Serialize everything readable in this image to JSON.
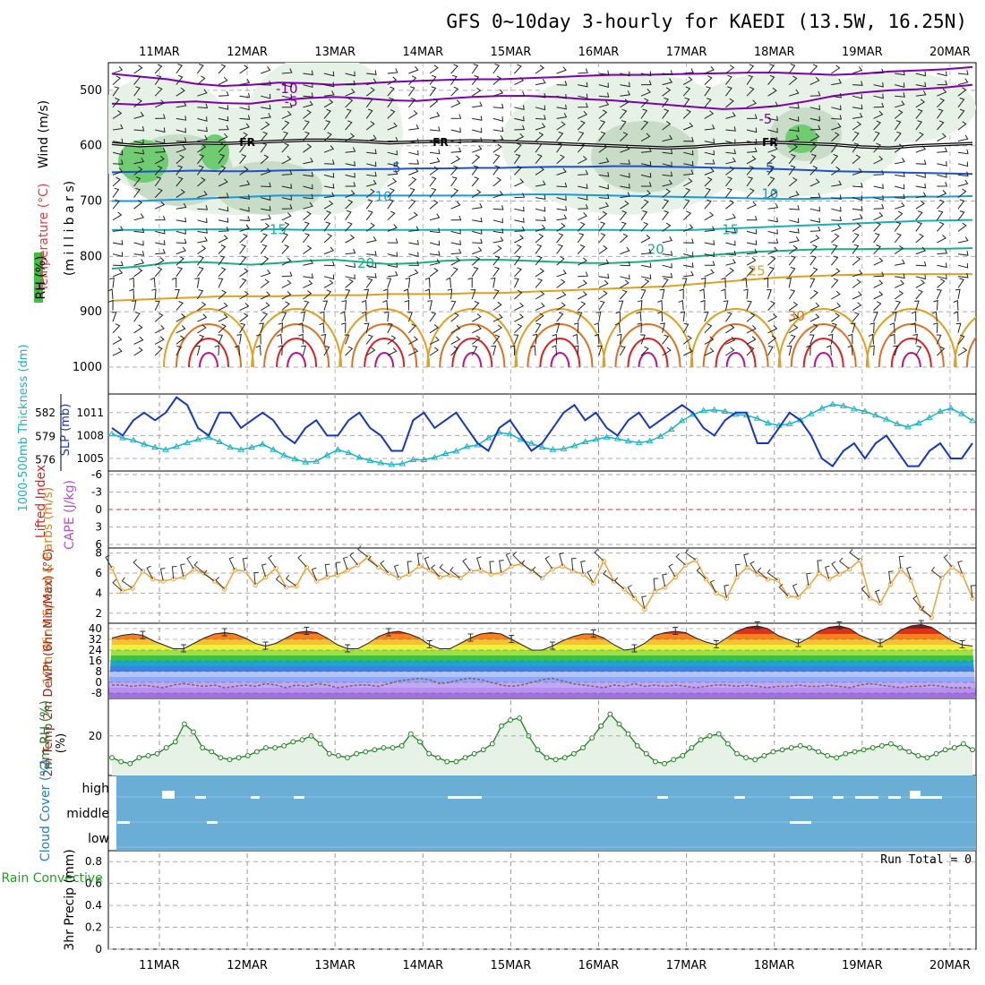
{
  "title": "GFS 0~10day 3-hourly for KAEDI (13.5W, 16.25N)",
  "dates": [
    "11MAR",
    "12MAR",
    "13MAR",
    "14MAR",
    "15MAR",
    "16MAR",
    "17MAR",
    "18MAR",
    "19MAR",
    "20MAR"
  ],
  "colors": {
    "purple": "#7f00b0",
    "black": "#000000",
    "blue1": "#1e4fd0",
    "blue2": "#1a99e0",
    "teal": "#18b0b0",
    "green": "#18b080",
    "orange": "#e0a020",
    "dkorange": "#e07020",
    "red": "#e02020",
    "magenta": "#c0108a",
    "slp": "#1436c8",
    "thick": "#18b4c4",
    "wind10": "#f0a030",
    "rh": "#208020",
    "cloud": "#6aaed6"
  },
  "chart_data": [
    {
      "name": "upper-air",
      "type": "contour",
      "ylabel_wind": "Wind (m/s)",
      "ylabel_temp": "Temperature (°C)",
      "ylabel_rh": "RH (%)",
      "ylabel_p": "(m i l l i b a r s)",
      "yticks": [
        500,
        600,
        700,
        800,
        900,
        1000
      ],
      "ylim": [
        450,
        1000
      ],
      "isotherm_labels": [
        {
          "text": "-10",
          "t": 1.45,
          "p": 497
        },
        {
          "text": "-5",
          "t": 1.5,
          "p": 520
        },
        {
          "text": "-5",
          "t": 6.9,
          "p": 552
        },
        {
          "text": "FR",
          "t": 1.0,
          "p": 592
        },
        {
          "text": "FR",
          "t": 3.2,
          "p": 592
        },
        {
          "text": "FR",
          "t": 6.95,
          "p": 592
        },
        {
          "text": "5",
          "t": 2.7,
          "p": 640
        },
        {
          "text": "5",
          "t": 6.95,
          "p": 640
        },
        {
          "text": "10",
          "t": 2.55,
          "p": 692
        },
        {
          "text": "10",
          "t": 6.95,
          "p": 687
        },
        {
          "text": "15",
          "t": 1.35,
          "p": 752
        },
        {
          "text": "15",
          "t": 6.5,
          "p": 752
        },
        {
          "text": "20",
          "t": 2.35,
          "p": 812
        },
        {
          "text": "20",
          "t": 5.65,
          "p": 787
        },
        {
          "text": "25",
          "t": 6.8,
          "p": 826
        },
        {
          "text": "30",
          "t": 7.25,
          "p": 908
        }
      ],
      "isotherms": [
        {
          "label": "-10",
          "color": "#7f00b0",
          "p": [
            470,
            475,
            480,
            488,
            492,
            490,
            486,
            487,
            490,
            488,
            485,
            483,
            481,
            480,
            480,
            478,
            476,
            474,
            472,
            472,
            471,
            470,
            469,
            468,
            468,
            470,
            472,
            470,
            466,
            464,
            462,
            458
          ]
        },
        {
          "label": "-5",
          "color": "#7f00b0",
          "p": [
            524,
            526,
            522,
            520,
            523,
            524,
            518,
            514,
            512,
            514,
            518,
            519,
            515,
            512,
            510,
            510,
            512,
            516,
            518,
            522,
            526,
            530,
            534,
            532,
            528,
            520,
            510,
            504,
            500,
            498,
            495,
            490
          ]
        },
        {
          "label": "FR",
          "color": "#000000",
          "p": [
            596,
            600,
            598,
            595,
            596,
            594,
            592,
            590,
            590,
            592,
            595,
            593,
            592,
            591,
            592,
            594,
            596,
            598,
            600,
            602,
            604,
            602,
            598,
            596,
            594,
            596,
            598,
            602,
            604,
            600,
            598,
            596
          ]
        },
        {
          "label": "5",
          "color": "#1e4fd0",
          "p": [
            648,
            647,
            646,
            645,
            646,
            646,
            645,
            644,
            643,
            642,
            642,
            641,
            641,
            640,
            640,
            639,
            638,
            638,
            637,
            637,
            638,
            639,
            640,
            641,
            642,
            644,
            646,
            647,
            648,
            649,
            650,
            651
          ]
        },
        {
          "label": "10",
          "color": "#1a99e0",
          "p": [
            700,
            700,
            698,
            696,
            694,
            692,
            690,
            690,
            690,
            690,
            690,
            690,
            690,
            690,
            689,
            688,
            688,
            689,
            690,
            691,
            692,
            693,
            694,
            695,
            696,
            696,
            695,
            694,
            693,
            692,
            692,
            691
          ]
        },
        {
          "label": "15",
          "color": "#18b0b0",
          "p": [
            752,
            752,
            752,
            751,
            751,
            751,
            751,
            752,
            752,
            752,
            752,
            752,
            752,
            752,
            752,
            752,
            752,
            752,
            752,
            753,
            753,
            752,
            750,
            748,
            746,
            744,
            742,
            740,
            738,
            736,
            735,
            734
          ]
        },
        {
          "label": "20",
          "color": "#18b080",
          "p": [
            822,
            818,
            812,
            810,
            812,
            815,
            812,
            808,
            806,
            810,
            814,
            812,
            808,
            806,
            806,
            808,
            810,
            812,
            812,
            810,
            806,
            800,
            796,
            792,
            790,
            788,
            787,
            787,
            786,
            786,
            786,
            785
          ]
        },
        {
          "label": "25",
          "color": "#e0a020",
          "p": [
            880,
            878,
            876,
            874,
            872,
            872,
            872,
            870,
            870,
            870,
            868,
            868,
            868,
            866,
            866,
            864,
            862,
            860,
            858,
            856,
            854,
            850,
            846,
            842,
            838,
            836,
            834,
            833,
            832,
            832,
            832,
            832
          ]
        }
      ],
      "rh_shading_note": "RH (%)"
    },
    {
      "name": "slp-thickness",
      "type": "line",
      "ylabel_thick": "1000-500mb Thickness (dm)",
      "ylabel_slp": "SLP (mb)",
      "thickness_ticks": [
        576,
        579,
        582
      ],
      "slp_ticks": [
        1005,
        1008,
        1011
      ],
      "thick_lim": [
        574.8,
        584.2
      ],
      "slp_lim": [
        1003.6,
        1013.2
      ],
      "series": [
        {
          "name": "SLP",
          "values": [
            1009,
            1008,
            1010,
            1011,
            1010,
            1011,
            1013,
            1012,
            1009,
            1008,
            1011,
            1011,
            1009,
            1010,
            1011,
            1010,
            1008,
            1007,
            1009,
            1010,
            1008,
            1008,
            1010,
            1011,
            1009,
            1008,
            1006,
            1006,
            1010,
            1011,
            1009,
            1010,
            1011,
            1009,
            1007,
            1006,
            1009,
            1010,
            1008,
            1006,
            1007,
            1009,
            1011,
            1012,
            1010,
            1011,
            1009,
            1008,
            1010,
            1011,
            1009,
            1010,
            1011,
            1012,
            1011,
            1009,
            1008,
            1010,
            1011,
            1011,
            1007,
            1007,
            1009,
            1011,
            1010,
            1008,
            1005,
            1004,
            1006,
            1007,
            1005,
            1007,
            1008,
            1006,
            1004,
            1004,
            1006,
            1007,
            1005,
            1005,
            1007
          ]
        },
        {
          "name": "Thickness",
          "values": [
            579.3,
            578.8,
            578.5,
            578.0,
            577.6,
            577.3,
            577.7,
            578.2,
            578.6,
            578.9,
            578.3,
            577.6,
            577.3,
            577.6,
            578.0,
            577.3,
            576.6,
            576.1,
            575.7,
            575.8,
            576.6,
            577.3,
            576.9,
            576.3,
            575.9,
            575.6,
            575.4,
            575.5,
            576.0,
            576.0,
            576.3,
            576.8,
            577.1,
            577.7,
            577.9,
            578.8,
            579.5,
            579.3,
            578.6,
            578.1,
            577.6,
            577.3,
            577.4,
            577.8,
            578.3,
            578.6,
            578.9,
            578.7,
            578.4,
            578.2,
            578.4,
            579.0,
            579.9,
            581.0,
            581.8,
            582.3,
            582.4,
            582.2,
            581.8,
            581.7,
            581.3,
            580.7,
            580.4,
            580.6,
            581.1,
            581.9,
            582.6,
            583.1,
            582.9,
            582.5,
            582.2,
            581.7,
            581.2,
            580.6,
            580.2,
            580.7,
            581.4,
            582.2,
            582.6,
            581.9,
            581.0
          ]
        }
      ]
    },
    {
      "name": "li-cape",
      "type": "line",
      "ylabel_li": "Lifted Index",
      "ylabel_cape": "CAPE (J/kg)",
      "yticks": [
        "-6",
        "-3",
        "0",
        "3",
        "6"
      ],
      "ylim": [
        -6,
        6
      ]
    },
    {
      "name": "wind10m",
      "type": "line",
      "ylabel": "10m Wind Speed & Barbs (m/s)",
      "yticks": [
        2,
        4,
        6,
        8
      ],
      "ylim": [
        1,
        8.5
      ],
      "series": [
        {
          "name": "10m Wind Speed",
          "values": [
            6.5,
            4.2,
            4.5,
            6.2,
            5.4,
            5.2,
            5.4,
            5.6,
            6.4,
            6.0,
            5.2,
            4.4,
            6.3,
            6.2,
            4.8,
            5.6,
            6.5,
            4.6,
            4.7,
            6.6,
            5.2,
            5.6,
            5.8,
            6.3,
            6.8,
            7.6,
            6.6,
            6.0,
            5.5,
            5.9,
            6.7,
            6.3,
            5.6,
            5.8,
            5.5,
            6.2,
            6.3,
            5.9,
            6.0,
            6.7,
            6.9,
            6.2,
            5.5,
            6.4,
            6.7,
            6.2,
            5.9,
            5.0,
            7.2,
            5.2,
            4.4,
            3.5,
            2.4,
            4.2,
            4.6,
            5.6,
            6.8,
            7.3,
            5.4,
            4.0,
            3.5,
            5.6,
            6.6,
            5.9,
            5.4,
            5.3,
            3.7,
            3.6,
            4.7,
            6.0,
            5.4,
            5.9,
            6.4,
            7.3,
            3.5,
            3.0,
            4.9,
            6.4,
            5.3,
            2.5,
            1.6,
            5.5,
            6.6,
            5.9,
            3.5
          ]
        }
      ]
    },
    {
      "name": "temp2m",
      "type": "area",
      "ylabel": "2m Temp 2m DewPt (6hr Min/Max) (°C)",
      "yticks": [
        -8,
        0,
        8,
        16,
        24,
        32,
        40
      ],
      "ylim": [
        -12,
        44
      ],
      "series": [
        {
          "name": "2m Temp",
          "values": [
            33,
            35,
            36,
            35,
            31,
            28,
            25,
            25,
            29,
            33,
            36,
            37,
            36,
            33,
            29,
            27,
            29,
            33,
            37,
            38,
            37,
            33,
            28,
            25,
            25,
            29,
            34,
            37,
            38,
            36,
            33,
            28,
            25,
            25,
            29,
            33,
            36,
            37,
            36,
            32,
            28,
            24,
            24,
            27,
            31,
            34,
            36,
            36,
            33,
            28,
            24,
            25,
            29,
            35,
            37,
            38,
            37,
            33,
            30,
            28,
            33,
            38,
            41,
            42,
            40,
            35,
            32,
            29,
            33,
            38,
            41,
            42,
            40,
            35,
            32,
            29,
            33,
            39,
            42,
            43,
            41,
            36,
            31,
            28,
            27
          ]
        },
        {
          "name": "2m DewPt",
          "values": [
            -2,
            -2,
            -3,
            -2,
            -3,
            -4,
            -2,
            -1,
            -2,
            -3,
            -2,
            -4,
            -3,
            -2,
            -3,
            -1,
            -2,
            -4,
            -2,
            -3,
            -1,
            -2,
            -4,
            -3,
            -2,
            -2,
            -3,
            -1,
            1,
            2,
            3,
            2,
            -1,
            0,
            2,
            3,
            2,
            0,
            -2,
            -3,
            -2,
            0,
            2,
            3,
            1,
            -1,
            -2,
            -3,
            -4,
            -2,
            -3,
            -1,
            -3,
            -2,
            -3,
            -2,
            -3,
            -4,
            -3,
            -2,
            -2,
            -3,
            -2,
            -3,
            -4,
            -3,
            -3,
            -2,
            -3,
            -3,
            -2,
            -3,
            -4,
            -2,
            -1,
            -2,
            -3,
            -4,
            -3,
            -3,
            -2,
            -3,
            -4,
            -4,
            -4
          ]
        }
      ]
    },
    {
      "name": "rh2m",
      "type": "area",
      "ylabel": "2m RH (%)",
      "yticks": [
        20
      ],
      "ylim": [
        0,
        38
      ],
      "series": [
        {
          "name": "2m RH",
          "values": [
            9,
            7,
            6,
            9,
            10,
            11,
            14,
            17,
            26,
            22,
            14,
            12,
            9,
            8,
            9,
            10,
            12,
            14,
            14,
            15,
            17,
            18,
            20,
            16,
            11,
            10,
            9,
            11,
            12,
            13,
            14,
            14,
            15,
            21,
            17,
            11,
            9,
            7,
            7,
            9,
            11,
            13,
            16,
            25,
            28,
            29,
            20,
            13,
            9,
            8,
            9,
            11,
            14,
            19,
            25,
            31,
            26,
            21,
            15,
            11,
            7,
            6,
            8,
            10,
            14,
            18,
            20,
            21,
            16,
            11,
            9,
            8,
            10,
            12,
            13,
            14,
            15,
            14,
            12,
            10,
            9,
            11,
            12,
            13,
            14,
            15,
            16,
            14,
            12,
            10,
            9,
            11,
            13,
            14,
            16,
            13
          ]
        }
      ]
    },
    {
      "name": "cloud",
      "type": "heatmap",
      "ylabel": "Cloud Cover (%)",
      "levels": [
        "high",
        "middle",
        "low"
      ]
    },
    {
      "name": "precip",
      "type": "bar",
      "ylabel_left": "Total / Rain Convective",
      "ylabel": "3hr Precip (mm)",
      "yticks": [
        "0",
        "0.2",
        "0.4",
        "0.6",
        "0.8"
      ],
      "ylim": [
        0,
        0.9
      ],
      "run_total": "Run Total = 0"
    }
  ]
}
